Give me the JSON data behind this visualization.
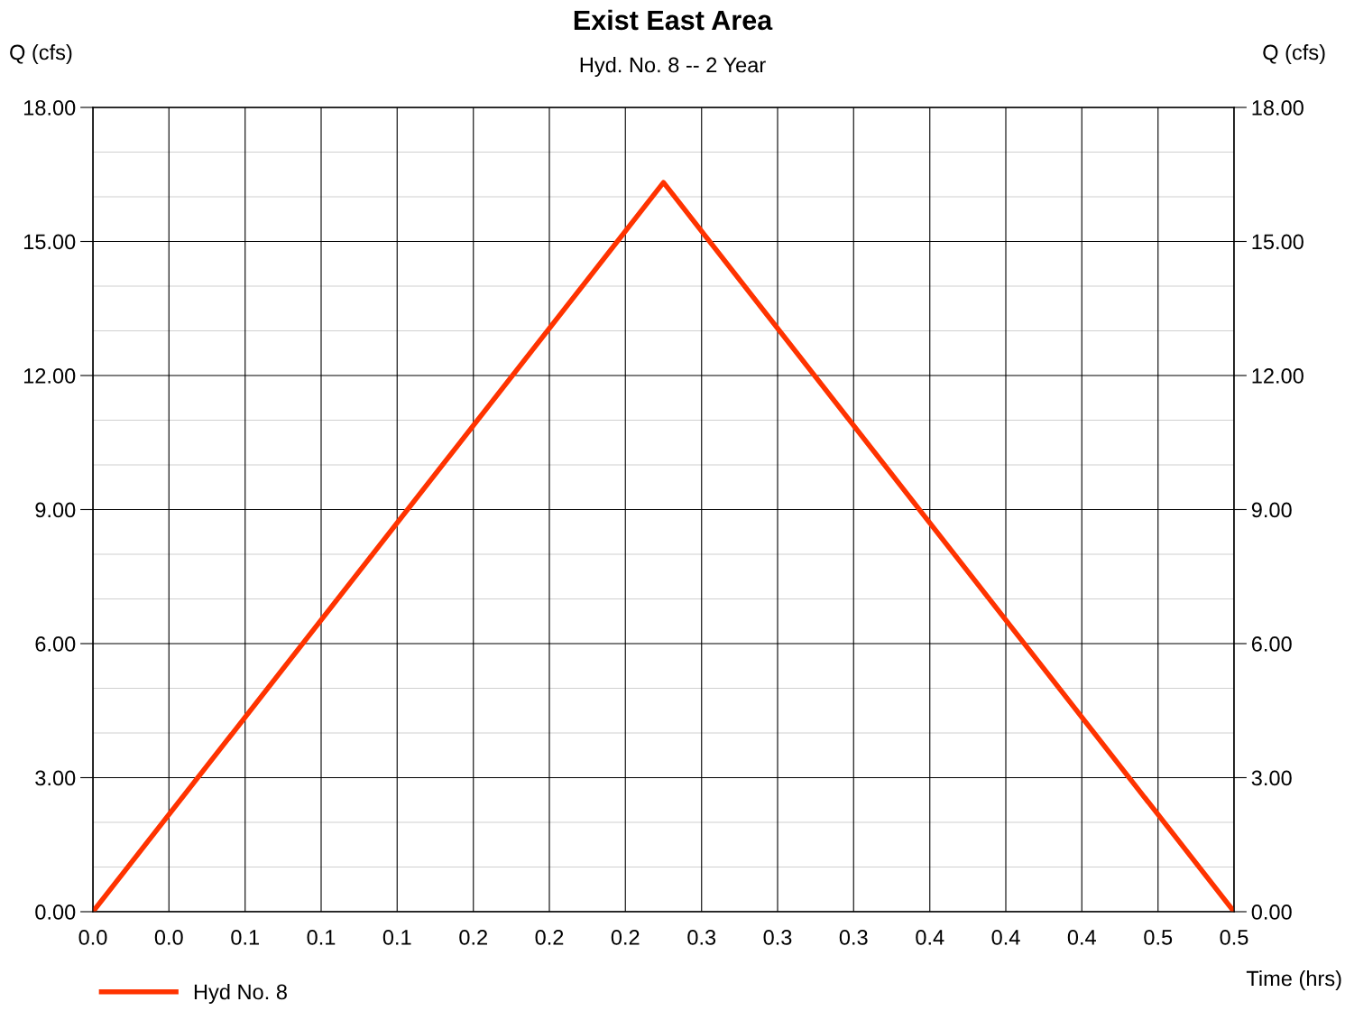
{
  "chart_data": {
    "type": "line",
    "title": "Exist East Area",
    "subtitle": "Hyd. No. 8 -- 2 Year",
    "xlabel": "Time (hrs)",
    "ylabel": "Q (cfs)",
    "y2label": "Q (cfs)",
    "x": [
      0,
      0.25,
      0.5
    ],
    "series": [
      {
        "name": "Hyd No. 8",
        "color": "#ff3300",
        "values": [
          0,
          16.32,
          0
        ]
      }
    ],
    "xlim": [
      0,
      0.5
    ],
    "xticks": [
      {
        "value": 0,
        "label": "0.0"
      },
      {
        "value": 0.0333,
        "label": "0.0"
      },
      {
        "value": 0.0667,
        "label": "0.1"
      },
      {
        "value": 0.1,
        "label": "0.1"
      },
      {
        "value": 0.1333,
        "label": "0.1"
      },
      {
        "value": 0.1667,
        "label": "0.2"
      },
      {
        "value": 0.2,
        "label": "0.2"
      },
      {
        "value": 0.2333,
        "label": "0.2"
      },
      {
        "value": 0.2667,
        "label": "0.3"
      },
      {
        "value": 0.3,
        "label": "0.3"
      },
      {
        "value": 0.3333,
        "label": "0.3"
      },
      {
        "value": 0.3667,
        "label": "0.4"
      },
      {
        "value": 0.4,
        "label": "0.4"
      },
      {
        "value": 0.4333,
        "label": "0.4"
      },
      {
        "value": 0.4667,
        "label": "0.5"
      },
      {
        "value": 0.5,
        "label": "0.5"
      }
    ],
    "ylim": [
      0,
      18
    ],
    "yticks": [
      {
        "value": 0,
        "label": "0.00"
      },
      {
        "value": 3,
        "label": "3.00"
      },
      {
        "value": 6,
        "label": "6.00"
      },
      {
        "value": 9,
        "label": "9.00"
      },
      {
        "value": 12,
        "label": "12.00"
      },
      {
        "value": 15,
        "label": "15.00"
      },
      {
        "value": 18,
        "label": "18.00"
      }
    ],
    "y2lim": [
      0,
      18
    ],
    "y2ticks": [
      {
        "value": 0,
        "label": "0.00"
      },
      {
        "value": 3,
        "label": "3.00"
      },
      {
        "value": 6,
        "label": "6.00"
      },
      {
        "value": 9,
        "label": "9.00"
      },
      {
        "value": 12,
        "label": "12.00"
      },
      {
        "value": 15,
        "label": "15.00"
      },
      {
        "value": 18,
        "label": "18.00"
      }
    ],
    "grid": true,
    "legend": "bottom left",
    "line_style": "solid"
  }
}
